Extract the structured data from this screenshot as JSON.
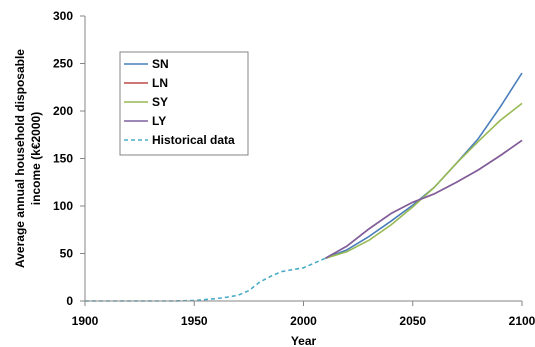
{
  "chart_data": {
    "type": "line",
    "xlabel": "Year",
    "ylabel_lines": [
      "Average annual household disposable",
      "income (k€2000)"
    ],
    "xlim": [
      1900,
      2100
    ],
    "ylim": [
      0,
      300
    ],
    "x_ticks": [
      1900,
      1950,
      2000,
      2050,
      2100
    ],
    "y_ticks": [
      0,
      50,
      100,
      150,
      200,
      250,
      300
    ],
    "grid": false,
    "legend_position": "top-left",
    "series": [
      {
        "name": "SN",
        "color": "#4a7ebb",
        "style": "solid",
        "x": [
          2010,
          2020,
          2030,
          2040,
          2050,
          2060,
          2070,
          2080,
          2090,
          2100
        ],
        "y": [
          45,
          54,
          68,
          84,
          101,
          120,
          145,
          171,
          204,
          240
        ]
      },
      {
        "name": "LN",
        "color": "#be4b48",
        "style": "solid",
        "x": [
          2010,
          2020,
          2030,
          2040,
          2050,
          2060,
          2070,
          2080,
          2090,
          2100
        ],
        "y": [
          45,
          58,
          76,
          92,
          104,
          113,
          125,
          138,
          153,
          169
        ]
      },
      {
        "name": "SY",
        "color": "#98b954",
        "style": "solid",
        "x": [
          2010,
          2020,
          2030,
          2040,
          2050,
          2060,
          2070,
          2080,
          2090,
          2100
        ],
        "y": [
          45,
          52,
          64,
          80,
          99,
          120,
          145,
          168,
          190,
          208
        ]
      },
      {
        "name": "LY",
        "color": "#7d60a0",
        "style": "solid",
        "x": [
          2010,
          2020,
          2030,
          2040,
          2050,
          2060,
          2070,
          2080,
          2090,
          2100
        ],
        "y": [
          45,
          58,
          76,
          92,
          104,
          113,
          125,
          138,
          153,
          169
        ]
      },
      {
        "name": "Historical data",
        "color": "#4bacc6",
        "style": "dashed",
        "x": [
          1900,
          1910,
          1920,
          1930,
          1940,
          1950,
          1955,
          1960,
          1965,
          1970,
          1975,
          1980,
          1985,
          1990,
          1995,
          2000,
          2005,
          2010
        ],
        "y": [
          0,
          0,
          0,
          0,
          0,
          0.5,
          1.5,
          2.5,
          4,
          6,
          11,
          20,
          26,
          31,
          33,
          35,
          40,
          45
        ]
      }
    ]
  }
}
